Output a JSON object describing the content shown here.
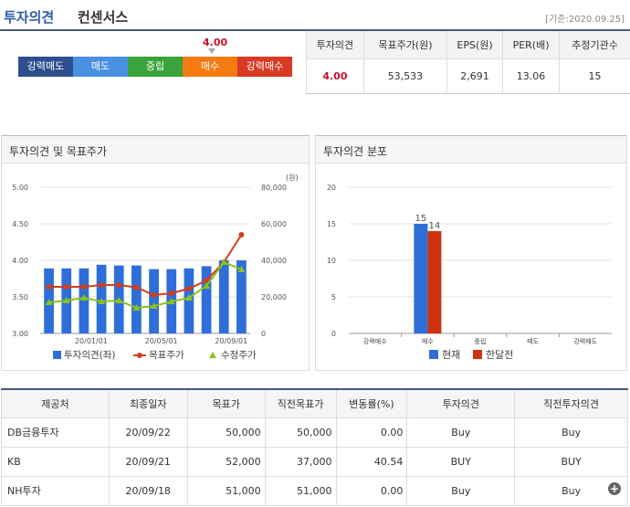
{
  "header": {
    "title": "투자의견",
    "subtitle": "컨센서스",
    "date": "[기준:2020.09.25]"
  },
  "opinion_scale": {
    "labels": [
      "강력매도",
      "매도",
      "중립",
      "매수",
      "강력매수"
    ],
    "value": "4.00"
  },
  "summary": {
    "headers": [
      "투자의견",
      "목표주가(원)",
      "EPS(원)",
      "PER(배)",
      "추정기관수"
    ],
    "values": [
      "4.00",
      "53,533",
      "2,691",
      "13.06",
      "15"
    ]
  },
  "chart1": {
    "title": "투자의견 및 목표주가"
  },
  "chart2": {
    "title": "투자의견 분포"
  },
  "chart_data": [
    {
      "type": "bar",
      "title": "투자의견 및 목표주가",
      "y_left_ticks": [
        "5.00",
        "4.50",
        "4.00",
        "3.50",
        "3.00"
      ],
      "y_right_ticks": [
        "80,000",
        "60,000",
        "40,000",
        "20,000",
        "0"
      ],
      "y_right_unit": "(원)",
      "x_ticks": [
        "20/01/01",
        "20/05/01",
        "20/09/01"
      ],
      "ylim_left": [
        3.0,
        5.0
      ],
      "ylim_right": [
        0,
        80000
      ],
      "opinion": [
        3.89,
        3.89,
        3.89,
        3.94,
        3.93,
        3.93,
        3.88,
        3.88,
        3.89,
        3.92,
        4.0,
        4.0
      ],
      "target": [
        25500,
        25500,
        25500,
        26500,
        26500,
        25200,
        21000,
        22000,
        24500,
        29000,
        39000,
        54000
      ],
      "revised": [
        17000,
        18000,
        19500,
        17500,
        18000,
        14000,
        15000,
        17500,
        19500,
        26000,
        39000,
        35000
      ],
      "legend": [
        "투자의견(좌)",
        "목표주가",
        "수정주가"
      ],
      "colors": {
        "bar": "#2e6ed8",
        "target": "#d43c1a",
        "revised": "#8ac21e"
      }
    },
    {
      "type": "bar",
      "title": "투자의견 분포",
      "categories": [
        "강력매수",
        "매수",
        "중립",
        "매도",
        "강력매도"
      ],
      "series": [
        {
          "name": "현재",
          "values": [
            0,
            15,
            0,
            0,
            0
          ],
          "color": "#2e6ed8"
        },
        {
          "name": "한달전",
          "values": [
            0,
            14,
            0,
            0,
            0
          ],
          "color": "#cc3311"
        }
      ],
      "y_ticks": [
        "20",
        "15",
        "10",
        "5",
        "0"
      ],
      "ylim": [
        0,
        20
      ]
    }
  ],
  "detail_table": {
    "headers": [
      "제공처",
      "최종일자",
      "목표가",
      "직전목표가",
      "변동률(%)",
      "투자의견",
      "직전투자의견"
    ],
    "rows": [
      [
        "DB금융투자",
        "20/09/22",
        "50,000",
        "50,000",
        "0.00",
        "Buy",
        "Buy"
      ],
      [
        "KB",
        "20/09/21",
        "52,000",
        "37,000",
        "40.54",
        "BUY",
        "BUY"
      ],
      [
        "NH투자",
        "20/09/18",
        "51,000",
        "51,000",
        "0.00",
        "Buy",
        "Buy"
      ]
    ]
  }
}
